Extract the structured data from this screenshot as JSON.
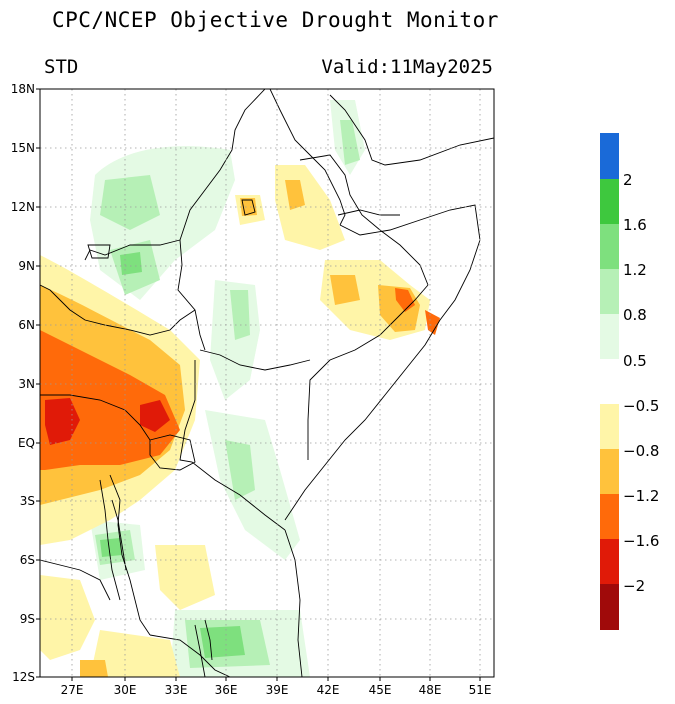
{
  "title": "CPC/NCEP Objective Drought Monitor",
  "subtitle_left": "STD",
  "subtitle_right": "Valid:11May2025",
  "lat_ticks": [
    "18N",
    "15N",
    "12N",
    "9N",
    "6N",
    "3N",
    "EQ",
    "3S",
    "6S",
    "9S",
    "12S"
  ],
  "lon_ticks": [
    "27E",
    "30E",
    "33E",
    "36E",
    "39E",
    "42E",
    "45E",
    "48E",
    "51E"
  ],
  "colorbar": {
    "wet_labels": [
      "2",
      "1.6",
      "1.2",
      "0.8",
      "0.5"
    ],
    "dry_labels": [
      "−0.5",
      "−0.8",
      "−1.2",
      "−1.6",
      "−2"
    ],
    "wet_colors": [
      "#1a6ad8",
      "#3ec83e",
      "#7ee07e",
      "#b6f0b6",
      "#e4fae4"
    ],
    "dry_colors": [
      "#fff5a8",
      "#ffc23c",
      "#ff6a0a",
      "#e01a08",
      "#a00a0a"
    ]
  }
}
